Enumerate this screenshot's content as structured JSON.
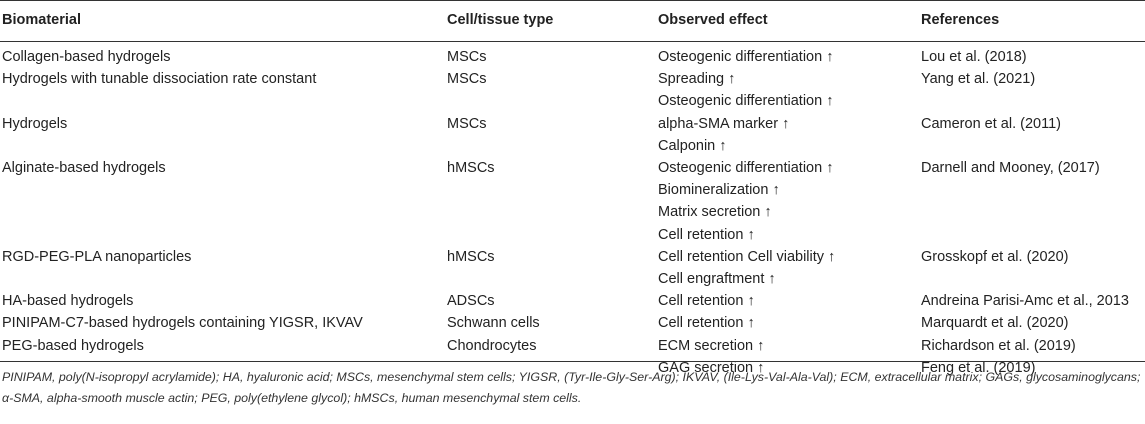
{
  "headers": {
    "biomaterial": "Biomaterial",
    "cell_type": "Cell/tissue type",
    "effect": "Observed effect",
    "references": "References"
  },
  "rows": [
    {
      "biomaterial": "Collagen-based hydrogels",
      "cell_type": "MSCs",
      "effects": [
        "Osteogenic differentiation ↑"
      ],
      "references": [
        "Lou et al. (2018)"
      ]
    },
    {
      "biomaterial": "Hydrogels with tunable dissociation rate constant",
      "cell_type": "MSCs",
      "effects": [
        "Spreading ↑",
        "Osteogenic differentiation ↑"
      ],
      "references": [
        "Yang et al. (2021)"
      ]
    },
    {
      "biomaterial": "Hydrogels",
      "cell_type": "MSCs",
      "effects": [
        "alpha-SMA marker ↑",
        "Calponin ↑"
      ],
      "references": [
        "Cameron et al. (2011)"
      ]
    },
    {
      "biomaterial": "Alginate-based hydrogels",
      "cell_type": "hMSCs",
      "effects": [
        "Osteogenic differentiation ↑",
        "Biomineralization ↑",
        "Matrix secretion ↑",
        "Cell retention ↑"
      ],
      "references": [
        "Darnell and Mooney, (2017)"
      ]
    },
    {
      "biomaterial": "RGD-PEG-PLA nanoparticles",
      "cell_type": "hMSCs",
      "effects": [
        "Cell retention Cell viability ↑",
        "Cell engraftment ↑"
      ],
      "references": [
        "Grosskopf et al. (2020)"
      ]
    },
    {
      "biomaterial": "HA-based hydrogels",
      "cell_type": "ADSCs",
      "effects": [
        "Cell retention ↑"
      ],
      "references": [
        "Andreina Parisi-Amc et al., 2013"
      ]
    },
    {
      "biomaterial": "PINIPAM-C7-based hydrogels containing YIGSR, IKVAV",
      "cell_type": "Schwann cells",
      "effects": [
        "Cell retention ↑"
      ],
      "references": [
        "Marquardt et al. (2020)"
      ]
    },
    {
      "biomaterial": "PEG-based hydrogels",
      "cell_type": "Chondrocytes",
      "effects": [
        "ECM secretion ↑",
        "GAG secretion ↑"
      ],
      "references": [
        "Richardson et al. (2019)",
        "Feng et al. (2019)"
      ]
    }
  ],
  "footnote": "PINIPAM, poly(N-isopropyl acrylamide); HA, hyaluronic acid; MSCs, mesenchymal stem cells; YIGSR, (Tyr-Ile-Gly-Ser-Arg); IKVAV, (Ile-Lys-Val-Ala-Val); ECM, extracellular matrix; GAGs, glycosaminoglycans; α-SMA, alpha-smooth muscle actin; PEG, poly(ethylene glycol); hMSCs, human mesenchymal stem cells."
}
